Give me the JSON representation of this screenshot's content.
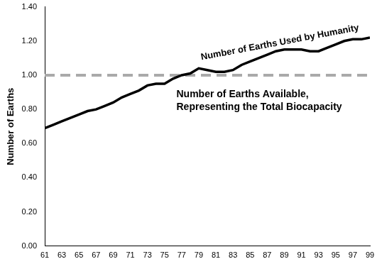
{
  "chart_data": {
    "type": "line",
    "y_label": "Number of Earths",
    "x": [
      61,
      62,
      63,
      64,
      65,
      66,
      67,
      68,
      69,
      70,
      71,
      72,
      73,
      74,
      75,
      76,
      77,
      78,
      79,
      80,
      81,
      82,
      83,
      84,
      85,
      86,
      87,
      88,
      89,
      90,
      91,
      92,
      93,
      94,
      95,
      96,
      97,
      98,
      99
    ],
    "series": [
      {
        "name": "Number of Earths Used by Humanity",
        "color": "#000000",
        "line_style": "solid",
        "values": [
          0.69,
          0.71,
          0.73,
          0.75,
          0.77,
          0.79,
          0.8,
          0.82,
          0.84,
          0.87,
          0.89,
          0.91,
          0.94,
          0.95,
          0.95,
          0.98,
          1.0,
          1.01,
          1.04,
          1.03,
          1.02,
          1.02,
          1.03,
          1.06,
          1.08,
          1.1,
          1.12,
          1.14,
          1.15,
          1.15,
          1.15,
          1.14,
          1.14,
          1.16,
          1.18,
          1.2,
          1.21,
          1.21,
          1.22
        ]
      },
      {
        "name": "Number of Earths Available, Representing the Total Biocapacity",
        "color": "#aaaaaa",
        "line_style": "dashed",
        "values": [
          1.0,
          1.0,
          1.0,
          1.0,
          1.0,
          1.0,
          1.0,
          1.0,
          1.0,
          1.0,
          1.0,
          1.0,
          1.0,
          1.0,
          1.0,
          1.0,
          1.0,
          1.0,
          1.0,
          1.0,
          1.0,
          1.0,
          1.0,
          1.0,
          1.0,
          1.0,
          1.0,
          1.0,
          1.0,
          1.0,
          1.0,
          1.0,
          1.0,
          1.0,
          1.0,
          1.0,
          1.0,
          1.0,
          1.0
        ]
      }
    ],
    "xlim": [
      61,
      99
    ],
    "xticks": [
      61,
      63,
      65,
      67,
      69,
      71,
      73,
      75,
      77,
      79,
      81,
      83,
      85,
      87,
      89,
      91,
      93,
      95,
      97,
      99
    ],
    "ylim": [
      0,
      1.4
    ],
    "yticks": [
      {
        "value": 0,
        "label": "0.00"
      },
      {
        "value": 0.2,
        "label": "0.20"
      },
      {
        "value": 0.4,
        "label": "0.40"
      },
      {
        "value": 0.6,
        "label": "0.60"
      },
      {
        "value": 0.8,
        "label": "0.80"
      },
      {
        "value": 1.0,
        "label": "1.00"
      },
      {
        "value": 1.2,
        "label": "1.20"
      },
      {
        "value": 1.4,
        "label": "1.40"
      }
    ],
    "grid": false
  }
}
